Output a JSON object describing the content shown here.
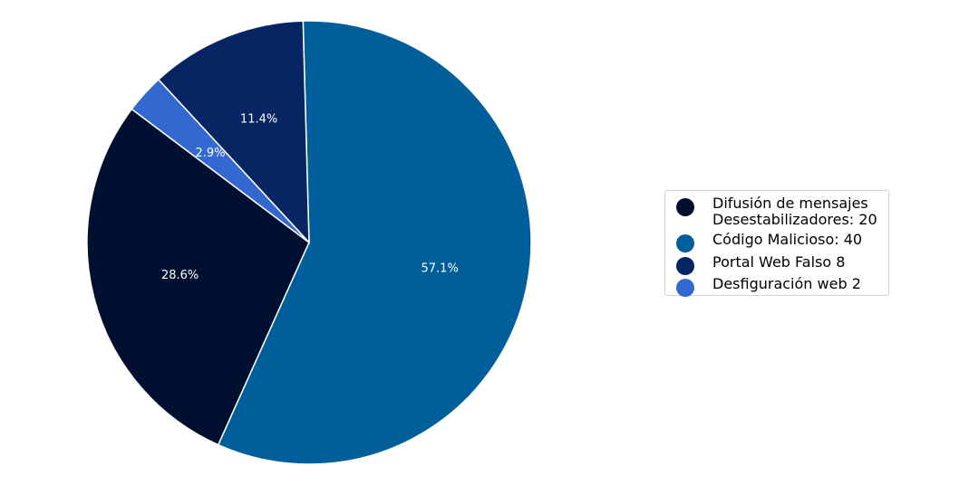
{
  "chart_data": {
    "type": "pie",
    "title": "",
    "slices": [
      {
        "label": "Difusión de mensajes\nDesestabilizadores: 20",
        "value": 20,
        "percent_label": "28.6%",
        "color": "#011030"
      },
      {
        "label": "Código Malicioso: 40",
        "value": 40,
        "percent_label": "57.1%",
        "color": "#005f9a"
      },
      {
        "label": "Portal Web Falso 8",
        "value": 8,
        "percent_label": "11.4%",
        "color": "#072463"
      },
      {
        "label": "Desfiguración web 2",
        "value": 2,
        "percent_label": "2.9%",
        "color": "#3268d0"
      }
    ],
    "start_angle_deg": 143,
    "direction": "counterclockwise",
    "legend_placement": "right"
  }
}
